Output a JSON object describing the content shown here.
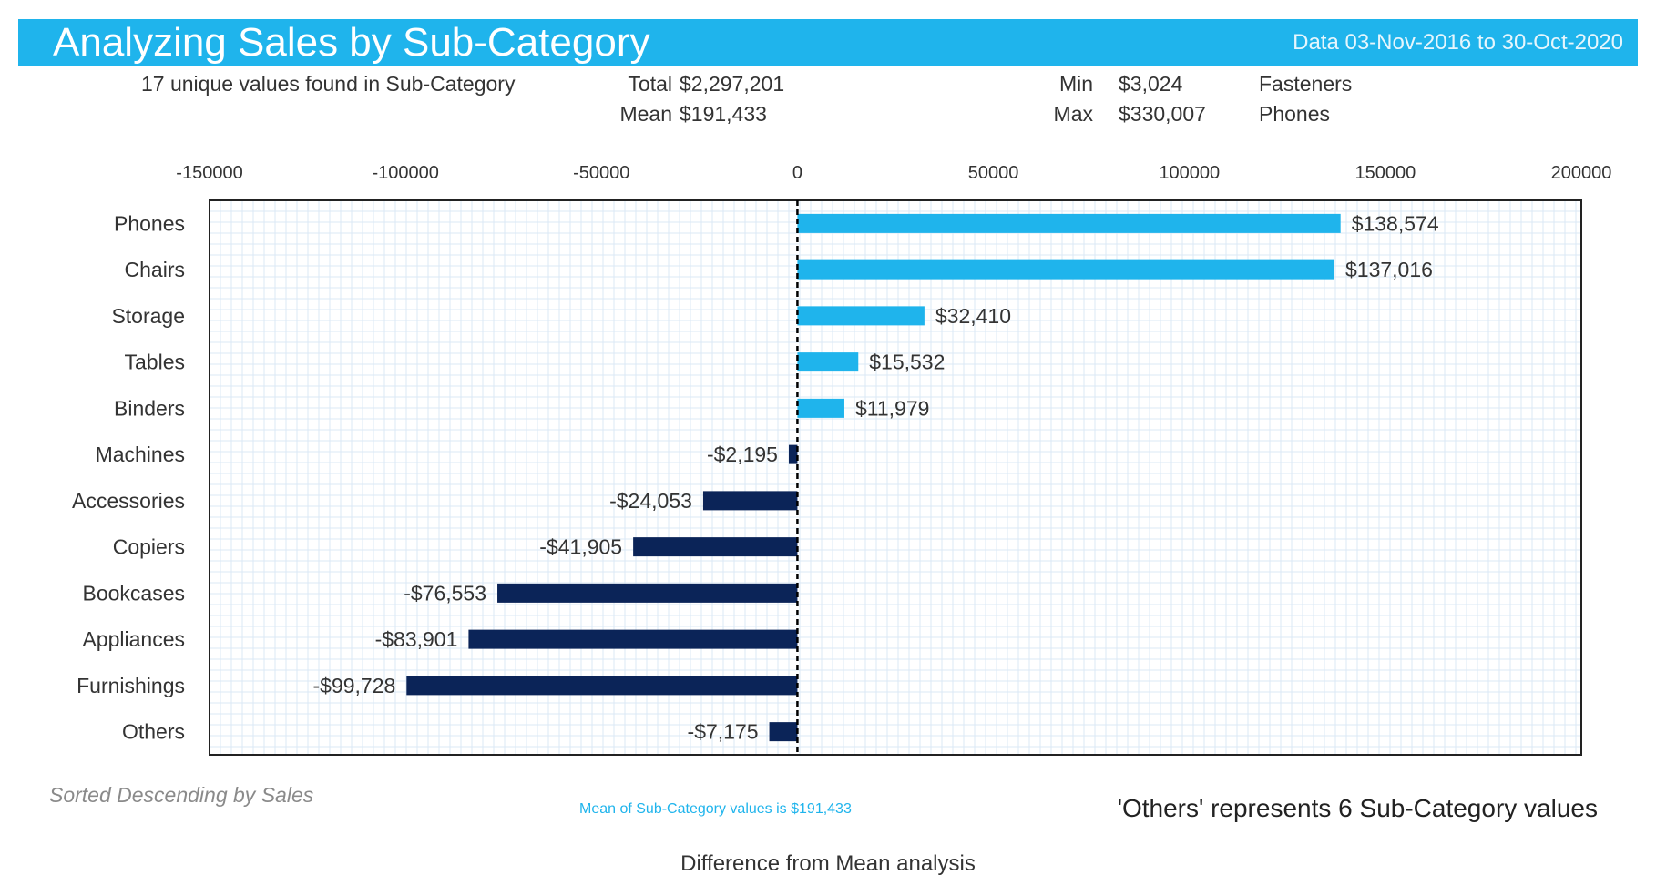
{
  "header": {
    "title": "Analyzing Sales by Sub-Category",
    "date_range": "Data 03-Nov-2016 to 30-Oct-2020"
  },
  "stats": {
    "unique_text": "17 unique values found in Sub-Category",
    "total_label": "Total",
    "total_value": "$2,297,201",
    "mean_label": "Mean",
    "mean_value": "$191,433",
    "min_label": "Min",
    "min_value": "$3,024",
    "min_category": "Fasteners",
    "max_label": "Max",
    "max_value": "$330,007",
    "max_category": "Phones"
  },
  "chart_data": {
    "type": "bar",
    "orientation": "horizontal",
    "categories": [
      "Phones",
      "Chairs",
      "Storage",
      "Tables",
      "Binders",
      "Machines",
      "Accessories",
      "Copiers",
      "Bookcases",
      "Appliances",
      "Furnishings",
      "Others"
    ],
    "values": [
      138574,
      137016,
      32410,
      15532,
      11979,
      -2195,
      -24053,
      -41905,
      -76553,
      -83901,
      -99728,
      -7175
    ],
    "value_labels": [
      "$138,574",
      "$137,016",
      "$32,410",
      "$15,532",
      "$11,979",
      "-$2,195",
      "-$24,053",
      "-$41,905",
      "-$76,553",
      "-$83,901",
      "-$99,728",
      "-$7,175"
    ],
    "xlim": [
      -150000,
      200000
    ],
    "xticks": [
      "-150000",
      "-100000",
      "-50000",
      "0",
      "50000",
      "100000",
      "150000",
      "200000"
    ],
    "grid": true,
    "axis_position": "top",
    "colors": {
      "positive": "#1fb4ec",
      "negative": "#0b2458"
    }
  },
  "footer": {
    "sort_note": "Sorted Descending by Sales",
    "mean_note": "Mean of Sub-Category values is $191,433",
    "others_note": "'Others' represents 6 Sub-Category values",
    "caption": "Difference from Mean analysis"
  }
}
